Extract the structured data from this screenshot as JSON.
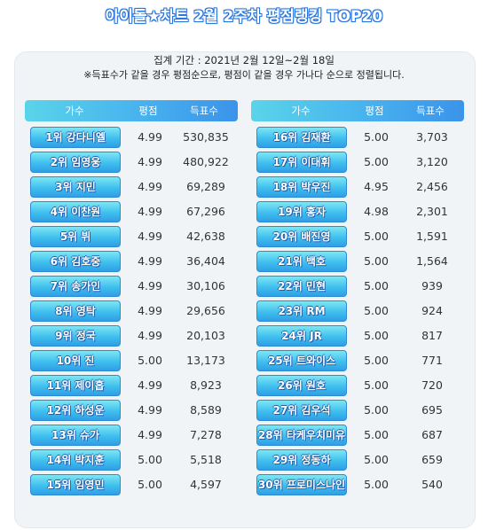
{
  "title": {
    "part1": "아이돌",
    "star": "★",
    "part2": "차트 2월 2주차 평점랭킹 TOP20"
  },
  "period_text": "집계 기간 : 2021년 2월 12일~2월 18일",
  "note_text": "※득표수가 같을 경우 평점순으로, 평점이 같을 경우 가나다 순으로 정렬됩니다.",
  "headers": {
    "singer": "가수",
    "score": "평점",
    "votes": "득표수"
  },
  "left_rows": [
    {
      "label": "1위 강다니엘",
      "score": "4.99",
      "votes": "530,835"
    },
    {
      "label": "2위 임영웅",
      "score": "4.99",
      "votes": "480,922"
    },
    {
      "label": "3위 지민",
      "score": "4.99",
      "votes": "69,289"
    },
    {
      "label": "4위 이찬원",
      "score": "4.99",
      "votes": "67,296"
    },
    {
      "label": "5위 뷔",
      "score": "4.99",
      "votes": "42,638"
    },
    {
      "label": "6위 김호중",
      "score": "4.99",
      "votes": "36,404"
    },
    {
      "label": "7위 송가인",
      "score": "4.99",
      "votes": "30,106"
    },
    {
      "label": "8위 영탁",
      "score": "4.99",
      "votes": "29,656"
    },
    {
      "label": "9위 정국",
      "score": "4.99",
      "votes": "20,103"
    },
    {
      "label": "10위 진",
      "score": "5.00",
      "votes": "13,173"
    },
    {
      "label": "11위 제이홉",
      "score": "4.99",
      "votes": "8,923"
    },
    {
      "label": "12위 하성운",
      "score": "4.99",
      "votes": "8,589"
    },
    {
      "label": "13위 슈가",
      "score": "4.99",
      "votes": "7,278"
    },
    {
      "label": "14위 박지훈",
      "score": "5.00",
      "votes": "5,518"
    },
    {
      "label": "15위 임영민",
      "score": "5.00",
      "votes": "4,597"
    }
  ],
  "right_rows": [
    {
      "label": "16위 김재환",
      "score": "5.00",
      "votes": "3,703"
    },
    {
      "label": "17위 이대휘",
      "score": "5.00",
      "votes": "3,120"
    },
    {
      "label": "18위 박우진",
      "score": "4.95",
      "votes": "2,456"
    },
    {
      "label": "19위 홍자",
      "score": "4.98",
      "votes": "2,301"
    },
    {
      "label": "20위 배진영",
      "score": "5.00",
      "votes": "1,591"
    },
    {
      "label": "21위 백호",
      "score": "5.00",
      "votes": "1,564"
    },
    {
      "label": "22위 민현",
      "score": "5.00",
      "votes": "939"
    },
    {
      "label": "23위 RM",
      "score": "5.00",
      "votes": "924"
    },
    {
      "label": "24위 JR",
      "score": "5.00",
      "votes": "817"
    },
    {
      "label": "25위 트와이스",
      "score": "5.00",
      "votes": "771"
    },
    {
      "label": "26위 원호",
      "score": "5.00",
      "votes": "720"
    },
    {
      "label": "27위 김우석",
      "score": "5.00",
      "votes": "695"
    },
    {
      "label": "28위 타케우치미유",
      "score": "5.00",
      "votes": "687"
    },
    {
      "label": "29위 정동하",
      "score": "5.00",
      "votes": "659"
    },
    {
      "label": "30위 프로미스나인",
      "score": "5.00",
      "votes": "540"
    }
  ],
  "colors": {
    "header_gradient_start": "#5ad4ea",
    "header_gradient_end": "#3b93ea",
    "badge_blue": "#3fbfee",
    "title_outline": "#2d7fe6"
  }
}
